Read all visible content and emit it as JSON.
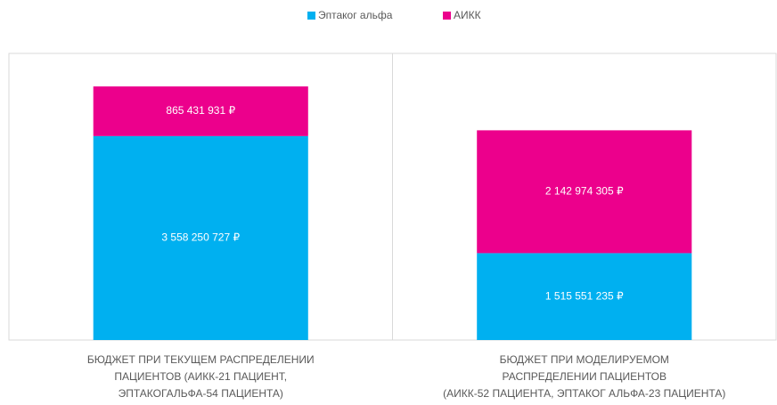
{
  "chart_data": {
    "type": "stacked_bar",
    "categories": [
      "БЮДЖЕТ ПРИ ТЕКУЩЕМ РАСПРЕДЕЛЕНИИ\nПАЦИЕНТОВ (АИКК-21 ПАЦИЕНТ,\nЭПТАКОГАЛЬФА-54 ПАЦИЕНТА)",
      "БЮДЖЕТ ПРИ МОДЕЛИРУЕМОМ\nРАСПРЕДЕЛЕНИИ ПАЦИЕНТОВ\n(АИКК-52 ПАЦИЕНТА, ЭПТАКОГ АЛЬФА-23 ПАЦИЕНТА)"
    ],
    "series": [
      {
        "name": "Эптаког альфа",
        "color": "#00b0f0",
        "values": [
          3558250727,
          1515551235
        ],
        "value_labels": [
          "3 558 250 727 ₽",
          "1 515 551 235 ₽"
        ]
      },
      {
        "name": "АИКК",
        "color": "#ec008c",
        "values": [
          865431931,
          2142974305
        ],
        "value_labels": [
          "865 431 931 ₽",
          "2 142 974 305 ₽"
        ]
      }
    ],
    "ylim": [
      0,
      5000000000
    ],
    "legend": "top"
  }
}
